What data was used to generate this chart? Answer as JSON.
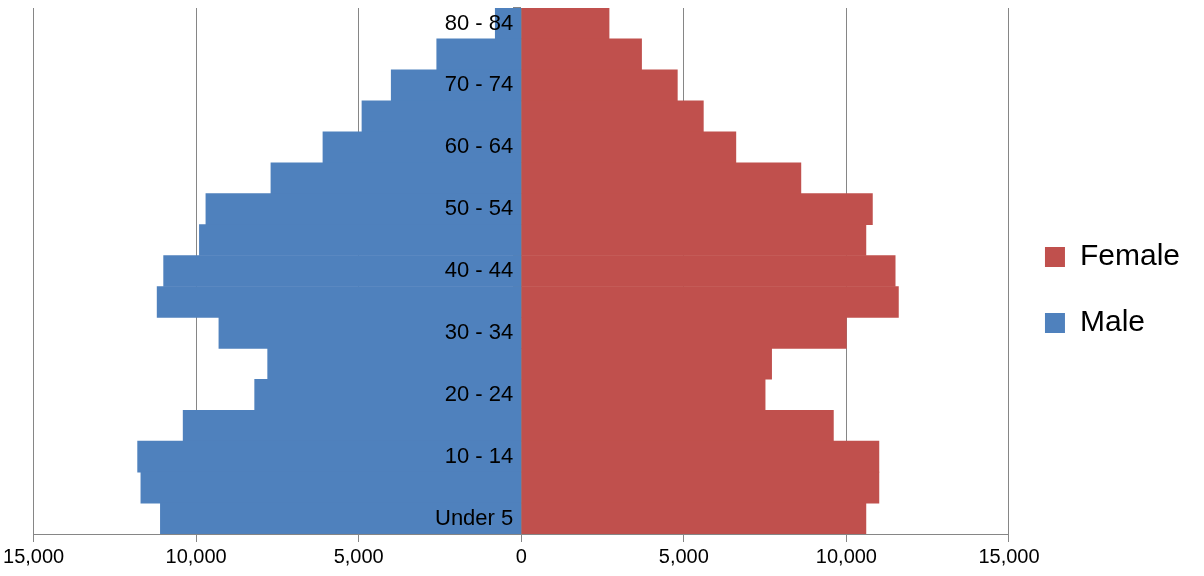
{
  "chart_data": {
    "type": "bar",
    "orientation": "horizontal",
    "stacked": true,
    "categories": [
      "80 - 84",
      null,
      "70 - 74",
      null,
      "60 - 64",
      null,
      "50 - 54",
      null,
      "40 - 44",
      null,
      "30 - 34",
      null,
      "20 - 24",
      null,
      "10 - 14",
      null,
      "Under 5"
    ],
    "series": [
      {
        "name": "Male",
        "color": "#4f81bd",
        "values": [
          -800,
          -2600,
          -4000,
          -4900,
          -6100,
          -7700,
          -9700,
          -9900,
          -11000,
          -11200,
          -9300,
          -7800,
          -8200,
          -10400,
          -11800,
          -11700,
          -11100
        ]
      },
      {
        "name": "Female",
        "color": "#c0504d",
        "values": [
          2700,
          3700,
          4800,
          5600,
          6600,
          8600,
          10800,
          10600,
          11500,
          11600,
          10000,
          7700,
          7500,
          9600,
          11000,
          11000,
          10600
        ]
      }
    ],
    "xlim": [
      -15000,
      15000
    ],
    "xticks": [
      {
        "value": -15000,
        "label": "15,000"
      },
      {
        "value": -10000,
        "label": "10,000"
      },
      {
        "value": -5000,
        "label": "5,000"
      },
      0,
      {
        "value": 5000,
        "label": "5,000"
      },
      {
        "value": 10000,
        "label": "10,000"
      },
      {
        "value": 15000,
        "label": "15,000"
      }
    ],
    "grid": "x",
    "legend": "right"
  }
}
